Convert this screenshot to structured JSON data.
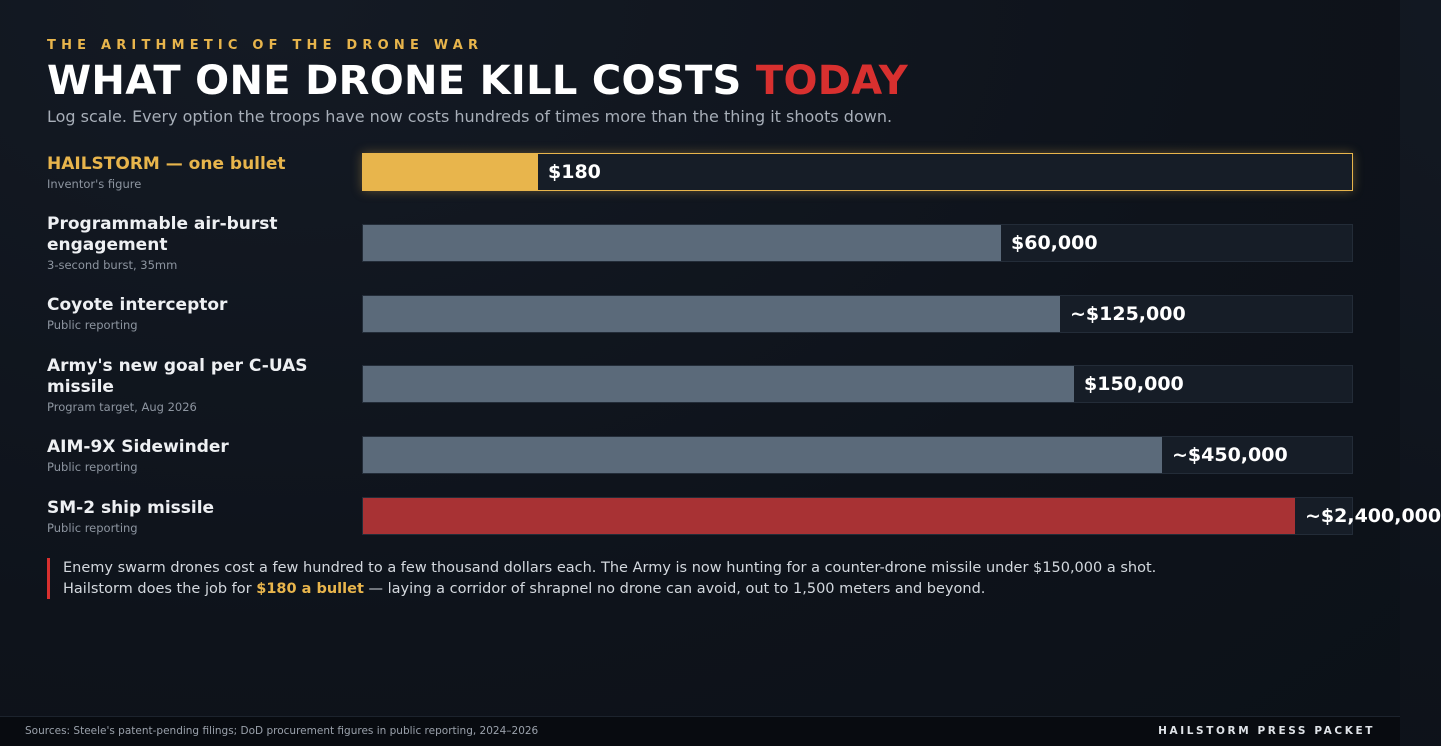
{
  "header": {
    "kicker": "THE ARITHMETIC OF THE DRONE WAR",
    "title_main": "WHAT ONE DRONE KILL COSTS ",
    "title_accent": "TODAY",
    "subtitle": "Log scale. Every option the troops have now costs hundreds of times more than the thing it shoots down."
  },
  "colors": {
    "highlight": "#e8b54c",
    "neutral_bar": "#5b6a7a",
    "danger_bar": "#a83234",
    "accent_red": "#d8302f"
  },
  "chart_data": {
    "type": "bar",
    "orientation": "horizontal",
    "scale": "log",
    "categories": [
      "HAILSTORM — one bullet",
      "Programmable air-burst engagement",
      "Coyote interceptor",
      "Army's new goal per C-UAS missile",
      "AIM-9X Sidewinder",
      "SM-2 ship missile"
    ],
    "sources": [
      "Inventor's figure",
      "3-second burst, 35mm",
      "Public reporting",
      "Program target, Aug 2026",
      "Public reporting",
      "Public reporting"
    ],
    "values": [
      180,
      60000,
      125000,
      150000,
      450000,
      2400000
    ],
    "value_labels": [
      "$180",
      "$60,000",
      "~$125,000",
      "$150,000",
      "~$450,000",
      "~$2,400,000"
    ],
    "bar_styles": [
      "highlight",
      "neutral",
      "neutral",
      "neutral",
      "neutral",
      "danger"
    ],
    "xlim": [
      20,
      5000000
    ]
  },
  "note": {
    "line1": "Enemy swarm drones cost a few hundred to a few thousand dollars each. The Army is now hunting for a counter-drone missile under $150,000 a shot.",
    "line2_pre": "Hailstorm does the job for ",
    "line2_hl": "$180 a bullet",
    "line2_post": " — laying a corridor of shrapnel no drone can avoid, out to 1,500 meters and beyond."
  },
  "footer": {
    "sources": "Sources: Steele's patent-pending filings; DoD procurement figures in public reporting, 2024–2026",
    "brand": "HAILSTORM PRESS PACKET"
  }
}
